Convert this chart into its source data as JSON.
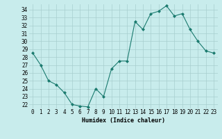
{
  "x": [
    0,
    1,
    2,
    3,
    4,
    5,
    6,
    7,
    8,
    9,
    10,
    11,
    12,
    13,
    14,
    15,
    16,
    17,
    18,
    19,
    20,
    21,
    22,
    23
  ],
  "y": [
    28.5,
    27.0,
    25.0,
    24.5,
    23.5,
    22.0,
    21.8,
    21.7,
    24.0,
    23.0,
    26.5,
    27.5,
    27.5,
    32.5,
    31.5,
    33.5,
    33.8,
    34.5,
    33.2,
    33.5,
    31.5,
    30.0,
    28.8,
    28.5
  ],
  "line_color": "#1a7a6e",
  "marker": "D",
  "marker_size": 2,
  "bg_color": "#c8ecec",
  "grid_color": "#a8cece",
  "xlabel": "Humidex (Indice chaleur)",
  "ylabel_ticks": [
    22,
    23,
    24,
    25,
    26,
    27,
    28,
    29,
    30,
    31,
    32,
    33,
    34
  ],
  "ylim": [
    21.5,
    34.7
  ],
  "xlim": [
    -0.5,
    23.5
  ],
  "tick_fontsize": 5.5,
  "xlabel_fontsize": 6.0
}
